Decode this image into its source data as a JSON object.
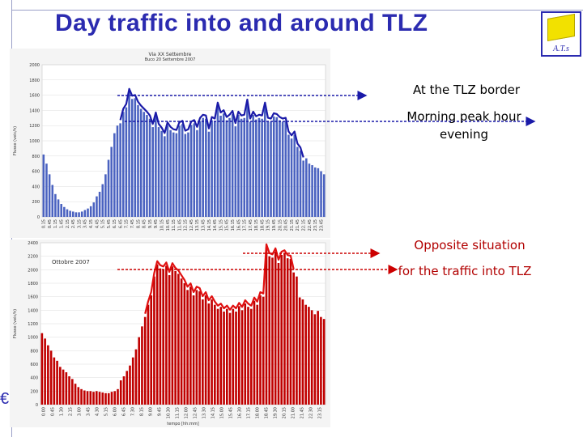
{
  "slide": {
    "title": "Day traffic into and around TLZ",
    "logo_text": "A.T.s",
    "euro_glyph": "€"
  },
  "annotations": {
    "border_label": "At the TLZ border",
    "peak_label_line1": "Morning peak hour",
    "peak_label_line2": "evening",
    "opposite_label": "Opposite situation",
    "into_label": "for the traffic into TLZ"
  },
  "colors": {
    "title": "#2b2bb0",
    "blue_bars": "#4a62c0",
    "blue_curve": "#1a1aa8",
    "red_bars": "#c00000",
    "red_curve": "#e01010",
    "arrow_blue": "#1a1aa8",
    "arrow_red": "#cc0000"
  },
  "chart_data": [
    {
      "type": "bar",
      "title": "Via XX Settembre",
      "subtitle": "Buco 20 Settembre 2007",
      "ylabel": "Flusso (veic/h)",
      "ylim": [
        0,
        2000
      ],
      "yticks": [
        0,
        200,
        400,
        600,
        800,
        1000,
        1200,
        1400,
        1600,
        1800,
        2000
      ],
      "xtick_labels": [
        "0.15",
        "0.45",
        "1.15",
        "1.45",
        "2.15",
        "2.45",
        "3.15",
        "3.45",
        "4.15",
        "4.45",
        "5.15",
        "5.45",
        "6.15",
        "6.45",
        "7.15",
        "7.45",
        "8.15",
        "8.45",
        "9.15",
        "9.45",
        "10.15",
        "10.45",
        "11.15",
        "11.45",
        "12.15",
        "12.45",
        "13.15",
        "13.45",
        "14.15",
        "14.45",
        "15.15",
        "15.45",
        "16.15",
        "16.45",
        "17.15",
        "17.45",
        "18.15",
        "18.45",
        "19.15",
        "19.45",
        "20.15",
        "20.45",
        "21.15",
        "21.45",
        "22.15",
        "22.45",
        "23.15",
        "23.45"
      ],
      "values": [
        820,
        700,
        560,
        420,
        300,
        230,
        170,
        130,
        100,
        80,
        70,
        60,
        60,
        70,
        90,
        110,
        140,
        190,
        270,
        330,
        430,
        560,
        750,
        920,
        1100,
        1200,
        1230,
        1380,
        1440,
        1640,
        1550,
        1560,
        1470,
        1420,
        1380,
        1340,
        1290,
        1180,
        1330,
        1180,
        1130,
        1060,
        1200,
        1140,
        1110,
        1100,
        1200,
        1220,
        1090,
        1110,
        1210,
        1230,
        1140,
        1260,
        1300,
        1290,
        1120,
        1270,
        1250,
        1460,
        1330,
        1360,
        1270,
        1300,
        1350,
        1190,
        1340,
        1290,
        1300,
        1500,
        1250,
        1340,
        1280,
        1300,
        1290,
        1460,
        1260,
        1250,
        1320,
        1310,
        1270,
        1250,
        1260,
        1080,
        1030,
        1080,
        920,
        870,
        740,
        770,
        700,
        680,
        650,
        640,
        600,
        560
      ]
    },
    {
      "type": "bar",
      "title": "Ottobre 2007",
      "xlabel": "tempo [hh:mm]",
      "ylabel": "Flusso (veic/h)",
      "ylim": [
        0,
        2400
      ],
      "yticks": [
        0,
        200,
        400,
        600,
        800,
        1000,
        1200,
        1400,
        1600,
        1800,
        2000,
        2200,
        2400
      ],
      "xtick_labels": [
        "0.00",
        "0.45",
        "1.30",
        "2.15",
        "3.00",
        "3.45",
        "4.30",
        "5.15",
        "6.00",
        "6.45",
        "7.30",
        "8.15",
        "9.00",
        "9.45",
        "10.30",
        "11.15",
        "12.00",
        "12.45",
        "13.30",
        "14.15",
        "15.00",
        "15.45",
        "16.30",
        "17.15",
        "18.00",
        "18.45",
        "19.30",
        "20.15",
        "21.00",
        "21.45",
        "22.30",
        "23.15"
      ],
      "values": [
        1060,
        980,
        880,
        800,
        700,
        650,
        560,
        520,
        480,
        420,
        380,
        310,
        260,
        230,
        210,
        200,
        200,
        190,
        200,
        190,
        180,
        170,
        170,
        190,
        200,
        230,
        360,
        420,
        500,
        580,
        700,
        820,
        1000,
        1160,
        1300,
        1480,
        1620,
        1900,
        2080,
        2020,
        2000,
        2060,
        1920,
        2050,
        1980,
        1940,
        1870,
        1800,
        1700,
        1750,
        1620,
        1700,
        1680,
        1560,
        1620,
        1500,
        1560,
        1480,
        1420,
        1450,
        1380,
        1420,
        1360,
        1420,
        1380,
        1460,
        1400,
        1500,
        1450,
        1420,
        1540,
        1480,
        1620,
        1600,
        2330,
        2200,
        2180,
        2270,
        2100,
        2220,
        2240,
        2170,
        2160,
        1960,
        1900,
        1590,
        1560,
        1480,
        1450,
        1400,
        1340,
        1390,
        1300,
        1270
      ]
    }
  ]
}
